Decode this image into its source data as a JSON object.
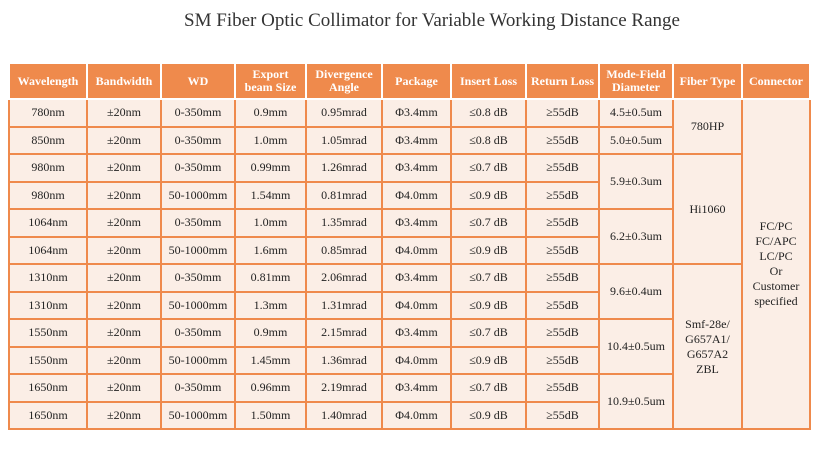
{
  "title": "SM Fiber Optic Collimator for Variable Working Distance Range",
  "headers": [
    "Wavelength",
    "Bandwidth",
    "WD",
    "Export beam Size",
    "Divergence Angle",
    "Package",
    "Insert Loss",
    "Return Loss",
    "Mode-Field Diameter",
    "Fiber Type",
    "Connector"
  ],
  "rows": [
    [
      "780nm",
      "±20nm",
      "0-350mm",
      "0.9mm",
      "0.95mrad",
      "Φ3.4mm",
      "≤0.8 dB",
      "≥55dB"
    ],
    [
      "850nm",
      "±20nm",
      "0-350mm",
      "1.0mm",
      "1.05mrad",
      "Φ3.4mm",
      "≤0.8 dB",
      "≥55dB"
    ],
    [
      "980nm",
      "±20nm",
      "0-350mm",
      "0.99mm",
      "1.26mrad",
      "Φ3.4mm",
      "≤0.7 dB",
      "≥55dB"
    ],
    [
      "980nm",
      "±20nm",
      "50-1000mm",
      "1.54mm",
      "0.81mrad",
      "Φ4.0mm",
      "≤0.9 dB",
      "≥55dB"
    ],
    [
      "1064nm",
      "±20nm",
      "0-350mm",
      "1.0mm",
      "1.35mrad",
      "Φ3.4mm",
      "≤0.7 dB",
      "≥55dB"
    ],
    [
      "1064nm",
      "±20nm",
      "50-1000mm",
      "1.6mm",
      "0.85mrad",
      "Φ4.0mm",
      "≤0.9 dB",
      "≥55dB"
    ],
    [
      "1310nm",
      "±20nm",
      "0-350mm",
      "0.81mm",
      "2.06mrad",
      "Φ3.4mm",
      "≤0.7 dB",
      "≥55dB"
    ],
    [
      "1310nm",
      "±20nm",
      "50-1000mm",
      "1.3mm",
      "1.31mrad",
      "Φ4.0mm",
      "≤0.9 dB",
      "≥55dB"
    ],
    [
      "1550nm",
      "±20nm",
      "0-350mm",
      "0.9mm",
      "2.15mrad",
      "Φ3.4mm",
      "≤0.7 dB",
      "≥55dB"
    ],
    [
      "1550nm",
      "±20nm",
      "50-1000mm",
      "1.45mm",
      "1.36mrad",
      "Φ4.0mm",
      "≤0.9 dB",
      "≥55dB"
    ],
    [
      "1650nm",
      "±20nm",
      "0-350mm",
      "0.96mm",
      "2.19mrad",
      "Φ3.4mm",
      "≤0.7 dB",
      "≥55dB"
    ],
    [
      "1650nm",
      "±20nm",
      "50-1000mm",
      "1.50mm",
      "1.40mrad",
      "Φ4.0mm",
      "≤0.9 dB",
      "≥55dB"
    ]
  ],
  "mode_field": [
    {
      "text": "4.5±0.5um",
      "rows": 1
    },
    {
      "text": "5.0±0.5um",
      "rows": 1
    },
    {
      "text": "5.9±0.3um",
      "rows": 2
    },
    {
      "text": "6.2±0.3um",
      "rows": 2
    },
    {
      "text": "9.6±0.4um",
      "rows": 2
    },
    {
      "text": "10.4±0.5um",
      "rows": 2
    },
    {
      "text": "10.9±0.5um",
      "rows": 2
    }
  ],
  "fiber_type": [
    {
      "text": "780HP",
      "rows": 2
    },
    {
      "text": "Hi1060",
      "rows": 4
    },
    {
      "text": "Smf-28e/\nG657A1/\nG657A2\nZBL",
      "rows": 6
    }
  ],
  "connector": {
    "text": "FC/PC\nFC/APC\nLC/PC\nOr\nCustomer\nspecified",
    "rows": 12
  }
}
